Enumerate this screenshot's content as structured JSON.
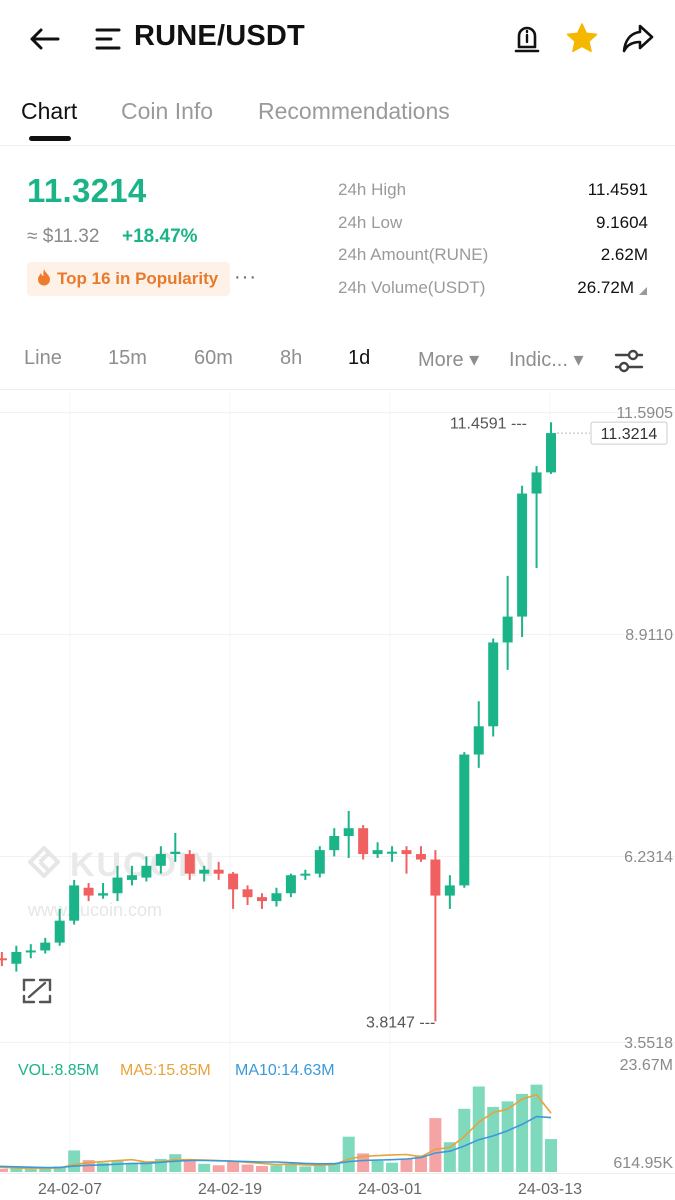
{
  "header": {
    "title": "RUNE/USDT",
    "icons": [
      "back-arrow-icon",
      "menu-lines-icon",
      "alert-bell-icon",
      "star-icon",
      "share-icon"
    ],
    "star_color": "#f5b800"
  },
  "tabs": [
    {
      "label": "Chart",
      "active": true
    },
    {
      "label": "Coin Info",
      "active": false
    },
    {
      "label": "Recommendations",
      "active": false
    }
  ],
  "price": {
    "last": "11.3214",
    "usd": "≈ $11.32",
    "change": "+18.47%",
    "badge": "Top 16 in Popularity",
    "more": "···",
    "color_up": "#1bb488",
    "color_down": "#f06060"
  },
  "stats": [
    {
      "label": "24h High",
      "value": "11.4591"
    },
    {
      "label": "24h Low",
      "value": "9.1604"
    },
    {
      "label": "24h Amount(RUNE)",
      "value": "2.62M"
    },
    {
      "label": "24h Volume(USDT)",
      "value": "26.72M"
    }
  ],
  "intervals": [
    {
      "label": "Line",
      "active": false
    },
    {
      "label": "15m",
      "active": false
    },
    {
      "label": "60m",
      "active": false
    },
    {
      "label": "8h",
      "active": false
    },
    {
      "label": "1d",
      "active": true
    },
    {
      "label": "More ▾",
      "active": false
    },
    {
      "label": "Indic... ▾",
      "active": false
    }
  ],
  "chart_data": {
    "type": "candlestick",
    "y_ticks": [
      "11.5905",
      "8.9110",
      "6.2314",
      "3.5518"
    ],
    "ylim": [
      3.5518,
      11.5905
    ],
    "current_price_label": "11.3214",
    "high_marker": "11.4591",
    "low_marker": "3.8147",
    "x_ticks": [
      "24-02-07",
      "24-02-19",
      "24-03-01",
      "24-03-13"
    ],
    "watermark": {
      "brand": "KUCOIN",
      "url": "www.kucoin.com"
    },
    "candles": [
      {
        "o": 4.85,
        "c": 4.65,
        "h": 4.92,
        "l": 4.55
      },
      {
        "o": 4.62,
        "c": 4.6,
        "h": 4.7,
        "l": 4.52
      },
      {
        "o": 4.55,
        "c": 4.7,
        "h": 4.78,
        "l": 4.45
      },
      {
        "o": 4.7,
        "c": 4.72,
        "h": 4.8,
        "l": 4.62
      },
      {
        "o": 4.72,
        "c": 4.82,
        "h": 4.88,
        "l": 4.68
      },
      {
        "o": 4.82,
        "c": 5.1,
        "h": 5.25,
        "l": 4.78
      },
      {
        "o": 5.1,
        "c": 5.55,
        "h": 5.62,
        "l": 5.05
      },
      {
        "o": 5.52,
        "c": 5.42,
        "h": 5.58,
        "l": 5.35
      },
      {
        "o": 5.42,
        "c": 5.45,
        "h": 5.58,
        "l": 5.38
      },
      {
        "o": 5.45,
        "c": 5.65,
        "h": 5.8,
        "l": 5.35
      },
      {
        "o": 5.62,
        "c": 5.68,
        "h": 5.8,
        "l": 5.55
      },
      {
        "o": 5.65,
        "c": 5.8,
        "h": 5.92,
        "l": 5.6
      },
      {
        "o": 5.8,
        "c": 5.95,
        "h": 6.05,
        "l": 5.7
      },
      {
        "o": 5.95,
        "c": 5.98,
        "h": 6.22,
        "l": 5.85
      },
      {
        "o": 5.95,
        "c": 5.7,
        "h": 6.0,
        "l": 5.62
      },
      {
        "o": 5.7,
        "c": 5.75,
        "h": 5.8,
        "l": 5.6
      },
      {
        "o": 5.75,
        "c": 5.7,
        "h": 5.85,
        "l": 5.62
      },
      {
        "o": 5.7,
        "c": 5.5,
        "h": 5.72,
        "l": 5.25
      },
      {
        "o": 5.5,
        "c": 5.4,
        "h": 5.55,
        "l": 5.3
      },
      {
        "o": 5.4,
        "c": 5.35,
        "h": 5.45,
        "l": 5.25
      },
      {
        "o": 5.35,
        "c": 5.45,
        "h": 5.52,
        "l": 5.28
      },
      {
        "o": 5.45,
        "c": 5.68,
        "h": 5.7,
        "l": 5.4
      },
      {
        "o": 5.68,
        "c": 5.7,
        "h": 5.75,
        "l": 5.62
      },
      {
        "o": 5.7,
        "c": 6.0,
        "h": 6.05,
        "l": 5.65
      },
      {
        "o": 6.0,
        "c": 6.18,
        "h": 6.28,
        "l": 5.92
      },
      {
        "o": 6.18,
        "c": 6.28,
        "h": 6.5,
        "l": 5.9
      },
      {
        "o": 6.28,
        "c": 5.95,
        "h": 6.32,
        "l": 5.88
      },
      {
        "o": 5.95,
        "c": 6.0,
        "h": 6.1,
        "l": 5.9
      },
      {
        "o": 5.98,
        "c": 5.98,
        "h": 6.05,
        "l": 5.85
      },
      {
        "o": 6.0,
        "c": 5.95,
        "h": 6.05,
        "l": 5.7
      },
      {
        "o": 5.95,
        "c": 5.88,
        "h": 6.05,
        "l": 5.85
      },
      {
        "o": 5.88,
        "c": 5.42,
        "h": 6.0,
        "l": 3.8147
      },
      {
        "o": 5.42,
        "c": 5.55,
        "h": 5.68,
        "l": 5.25
      },
      {
        "o": 5.55,
        "c": 7.22,
        "h": 7.25,
        "l": 5.52
      },
      {
        "o": 7.22,
        "c": 7.58,
        "h": 7.9,
        "l": 7.05
      },
      {
        "o": 7.58,
        "c": 8.65,
        "h": 8.7,
        "l": 7.45
      },
      {
        "o": 8.65,
        "c": 8.98,
        "h": 9.5,
        "l": 8.3
      },
      {
        "o": 8.98,
        "c": 10.55,
        "h": 10.65,
        "l": 8.72
      },
      {
        "o": 10.55,
        "c": 10.82,
        "h": 10.9,
        "l": 9.6
      },
      {
        "o": 10.82,
        "c": 11.3214,
        "h": 11.4591,
        "l": 10.8
      }
    ],
    "volume": {
      "vol_label": "VOL:8.85M",
      "ma5_label": "MA5:15.85M",
      "ma10_label": "MA10:14.63M",
      "max_label": "23.67M",
      "min_label": "614.95K",
      "max": 23.67,
      "values": [
        1.2,
        0.9,
        1.0,
        0.8,
        1.1,
        1.5,
        5.8,
        3.2,
        2.5,
        3.0,
        2.2,
        2.8,
        3.5,
        4.8,
        3.0,
        2.2,
        1.8,
        2.8,
        2.0,
        1.6,
        1.8,
        2.2,
        1.5,
        2.0,
        2.5,
        9.5,
        5.0,
        3.0,
        2.5,
        3.5,
        4.5,
        14.5,
        8.0,
        17.0,
        23.0,
        17.5,
        19.0,
        21.0,
        23.5,
        8.85
      ],
      "ma5": [
        1.5,
        1.3,
        1.1,
        1.0,
        1.0,
        1.1,
        2.0,
        2.5,
        2.8,
        3.1,
        3.3,
        2.7,
        2.8,
        3.3,
        3.3,
        3.2,
        3.1,
        2.9,
        2.6,
        2.3,
        2.0,
        2.1,
        1.9,
        1.8,
        2.0,
        3.5,
        4.2,
        4.4,
        4.6,
        4.7,
        4.1,
        6.1,
        6.6,
        9.5,
        13.4,
        16.0,
        16.9,
        19.6,
        20.8,
        15.85
      ],
      "ma10": [
        1.6,
        1.5,
        1.4,
        1.3,
        1.2,
        1.2,
        1.6,
        1.8,
        1.9,
        2.1,
        2.3,
        2.3,
        2.6,
        2.9,
        3.1,
        3.1,
        3.0,
        2.9,
        2.8,
        2.7,
        2.7,
        2.5,
        2.3,
        2.2,
        2.2,
        2.8,
        3.1,
        3.2,
        3.3,
        3.5,
        3.9,
        5.1,
        5.6,
        7.0,
        8.7,
        9.7,
        11.1,
        12.8,
        14.9,
        14.63
      ],
      "colors": {
        "vol": "#1bb488",
        "ma5": "#e8a33a",
        "ma10": "#3a9ad9"
      }
    }
  }
}
